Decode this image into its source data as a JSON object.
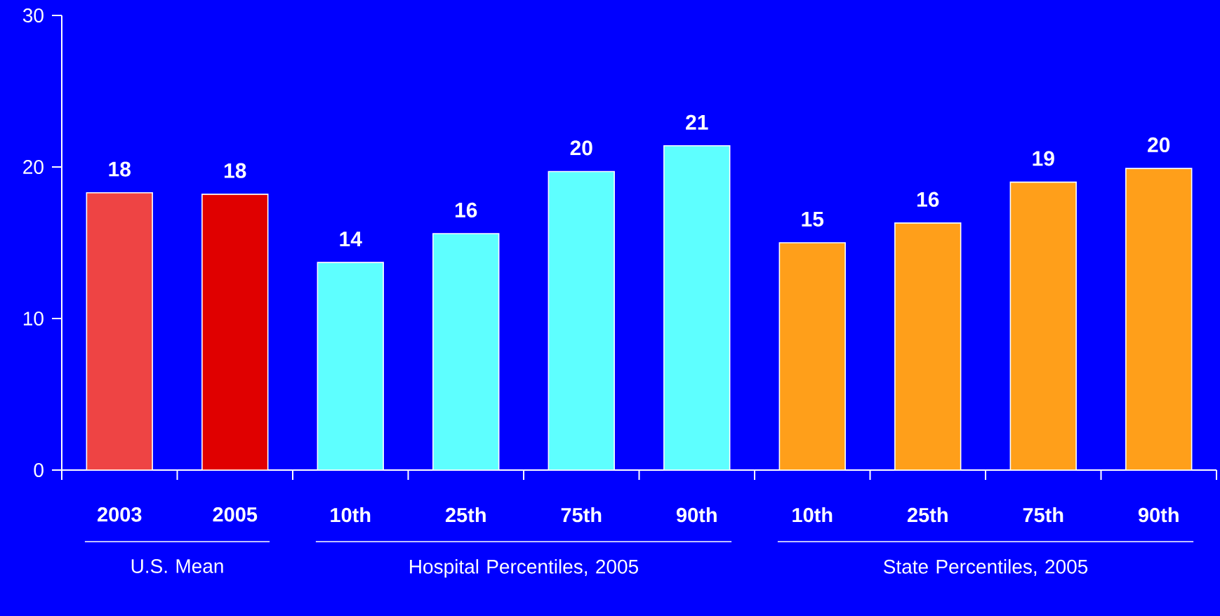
{
  "chart_data": {
    "type": "bar",
    "categories": [
      "2003",
      "2005",
      "10th",
      "25th",
      "75th",
      "90th",
      "10th",
      "25th",
      "75th",
      "90th"
    ],
    "values": [
      18.3,
      18.2,
      13.7,
      15.6,
      19.7,
      21.4,
      15.0,
      16.3,
      19.0,
      19.9
    ],
    "value_labels": [
      "18",
      "18",
      "14",
      "16",
      "20",
      "21",
      "15",
      "16",
      "19",
      "20"
    ],
    "colors": [
      "#ee4444",
      "#e00000",
      "#5effff",
      "#5effff",
      "#5effff",
      "#5effff",
      "#ff9f1a",
      "#ff9f1a",
      "#ff9f1a",
      "#ff9f1a"
    ],
    "ylim": [
      0,
      30
    ],
    "yticks": [
      0,
      10,
      20,
      30
    ],
    "annotations": [
      "U.S. Mean",
      "Hospital Percentiles, 2005",
      "State Percentiles, 2005"
    ]
  }
}
